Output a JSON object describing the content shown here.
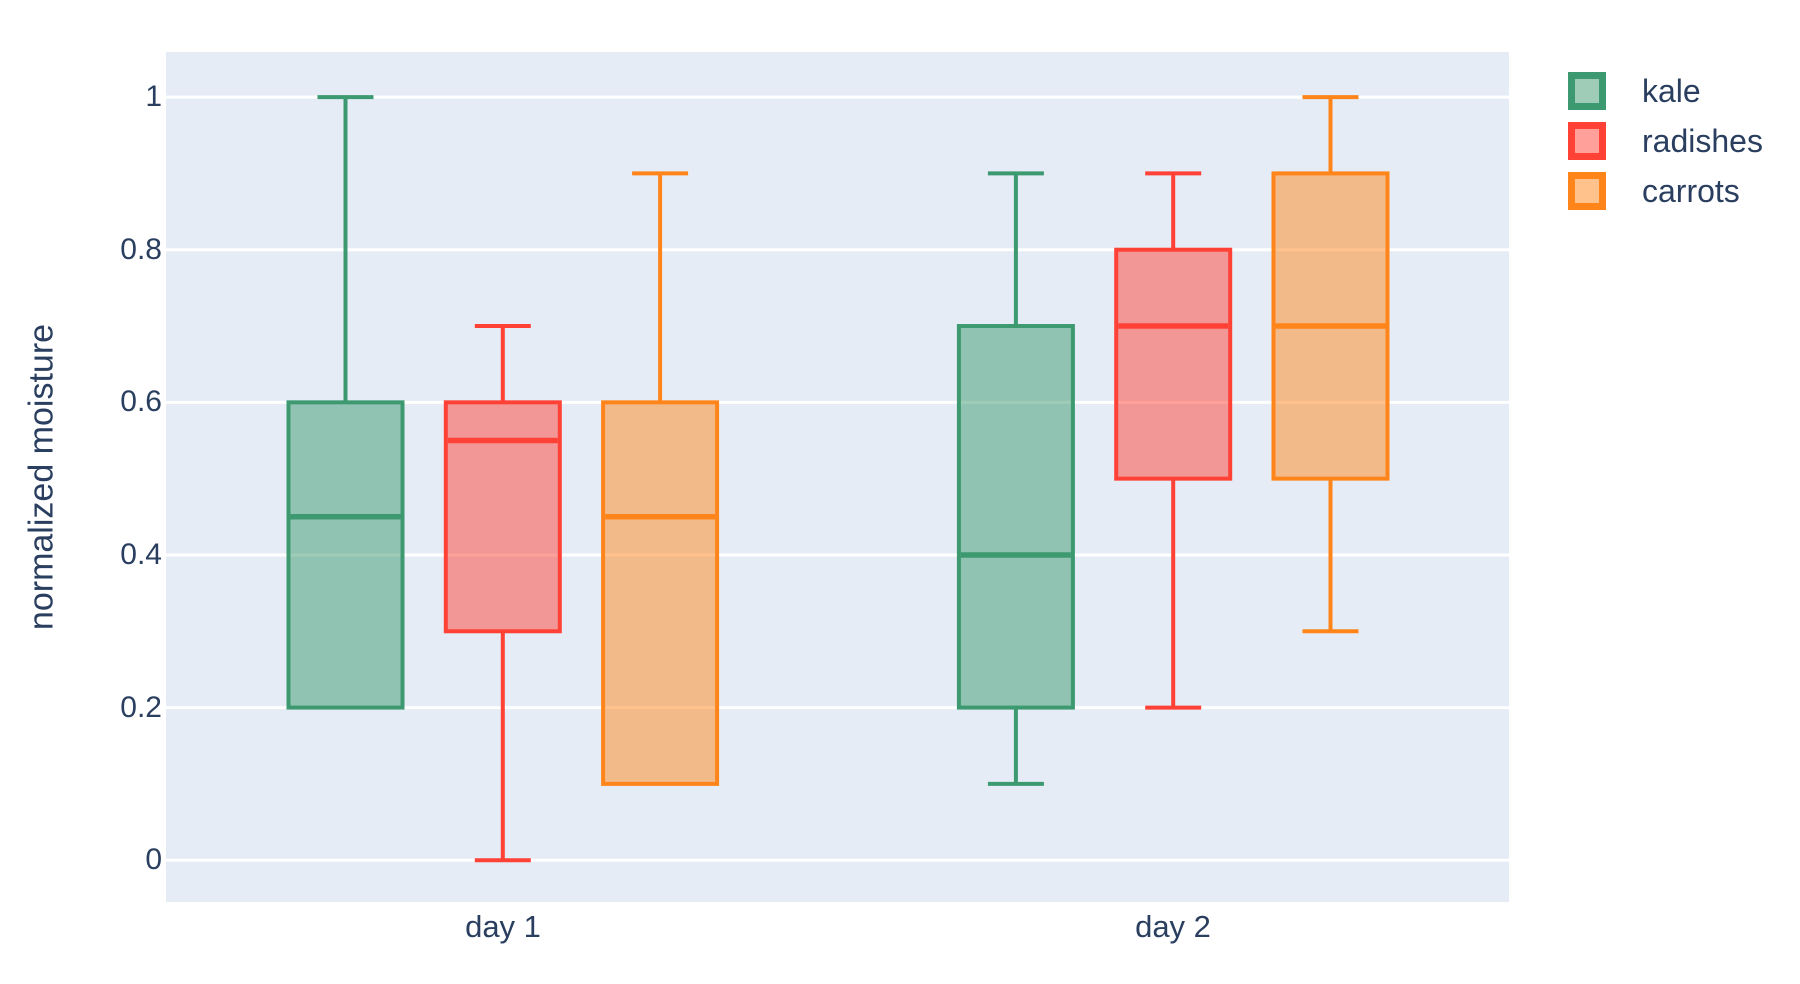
{
  "chart_data": {
    "type": "box",
    "title": "",
    "xlabel": "",
    "ylabel": "normalized moisture",
    "categories": [
      "day 1",
      "day 2"
    ],
    "yticks": [
      "0",
      "0.2",
      "0.4",
      "0.6",
      "0.8",
      "1"
    ],
    "ytick_values": [
      0,
      0.2,
      0.4,
      0.6,
      0.8,
      1
    ],
    "ylim": [
      -0.055,
      1.06
    ],
    "grid": true,
    "boxmode": "group",
    "legend_position": "top-right-outside",
    "series": [
      {
        "name": "kale",
        "color": "#3D9970",
        "boxes": [
          {
            "category": "day 1",
            "min": 0.2,
            "q1": 0.2,
            "median": 0.45,
            "q3": 0.6,
            "max": 1.0
          },
          {
            "category": "day 2",
            "min": 0.1,
            "q1": 0.2,
            "median": 0.4,
            "q3": 0.7,
            "max": 0.9
          }
        ]
      },
      {
        "name": "radishes",
        "color": "#FF4136",
        "boxes": [
          {
            "category": "day 1",
            "min": 0.0,
            "q1": 0.3,
            "median": 0.55,
            "q3": 0.6,
            "max": 0.7
          },
          {
            "category": "day 2",
            "min": 0.2,
            "q1": 0.5,
            "median": 0.7,
            "q3": 0.8,
            "max": 0.9
          }
        ]
      },
      {
        "name": "carrots",
        "color": "#FF851B",
        "boxes": [
          {
            "category": "day 1",
            "min": 0.1,
            "q1": 0.1,
            "median": 0.45,
            "q3": 0.6,
            "max": 0.9
          },
          {
            "category": "day 2",
            "min": 0.3,
            "q1": 0.5,
            "median": 0.7,
            "q3": 0.9,
            "max": 1.0
          }
        ]
      }
    ],
    "colors": {
      "plot_background": "#E5ECF6",
      "gridline": "#FFFFFF",
      "text": "#2A3F5F",
      "page_background": "#FFFFFF",
      "fill_alpha": 0.5
    }
  }
}
